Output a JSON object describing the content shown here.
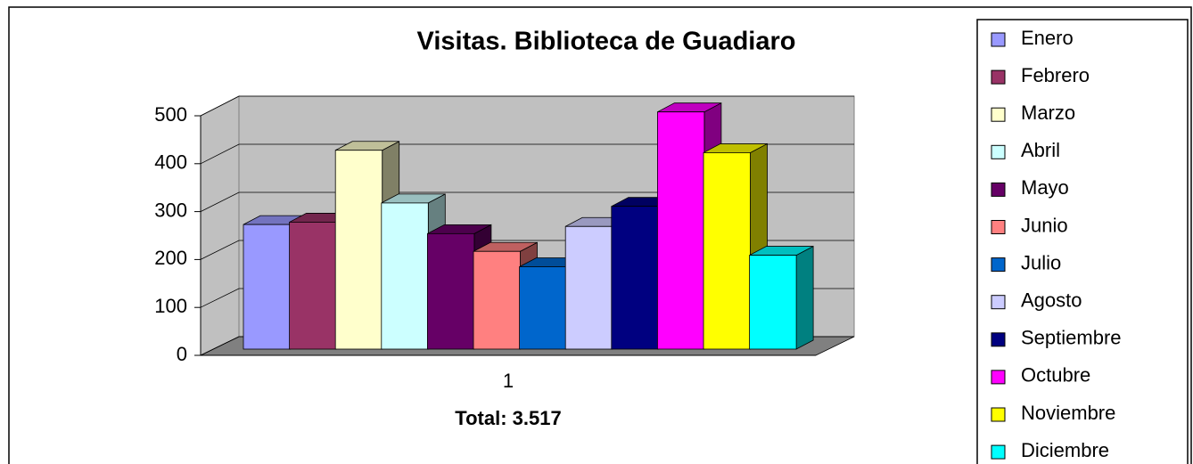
{
  "chart_data": {
    "type": "bar3d",
    "title": "Visitas. Biblioteca de Guadiaro",
    "categories": [
      "1"
    ],
    "x_label": "Total: 3.517",
    "ylim": [
      0,
      500
    ],
    "yticks": [
      0,
      100,
      200,
      300,
      400,
      500
    ],
    "grid": true,
    "series": [
      {
        "name": "Enero",
        "color": "#9999ff",
        "values": [
          260
        ]
      },
      {
        "name": "Febrero",
        "color": "#993366",
        "values": [
          265
        ]
      },
      {
        "name": "Marzo",
        "color": "#ffffcc",
        "values": [
          415
        ]
      },
      {
        "name": "Abril",
        "color": "#ccffff",
        "values": [
          305
        ]
      },
      {
        "name": "Mayo",
        "color": "#660066",
        "values": [
          241
        ]
      },
      {
        "name": "Junio",
        "color": "#ff8080",
        "values": [
          204
        ]
      },
      {
        "name": "Julio",
        "color": "#0066cc",
        "values": [
          172
        ]
      },
      {
        "name": "Agosto",
        "color": "#ccccff",
        "values": [
          256
        ]
      },
      {
        "name": "Septiembre",
        "color": "#000080",
        "values": [
          298
        ]
      },
      {
        "name": "Octubre",
        "color": "#ff00ff",
        "values": [
          495
        ]
      },
      {
        "name": "Noviembre",
        "color": "#ffff00",
        "values": [
          410
        ]
      },
      {
        "name": "Diciembre",
        "color": "#00ffff",
        "values": [
          196
        ]
      }
    ]
  }
}
